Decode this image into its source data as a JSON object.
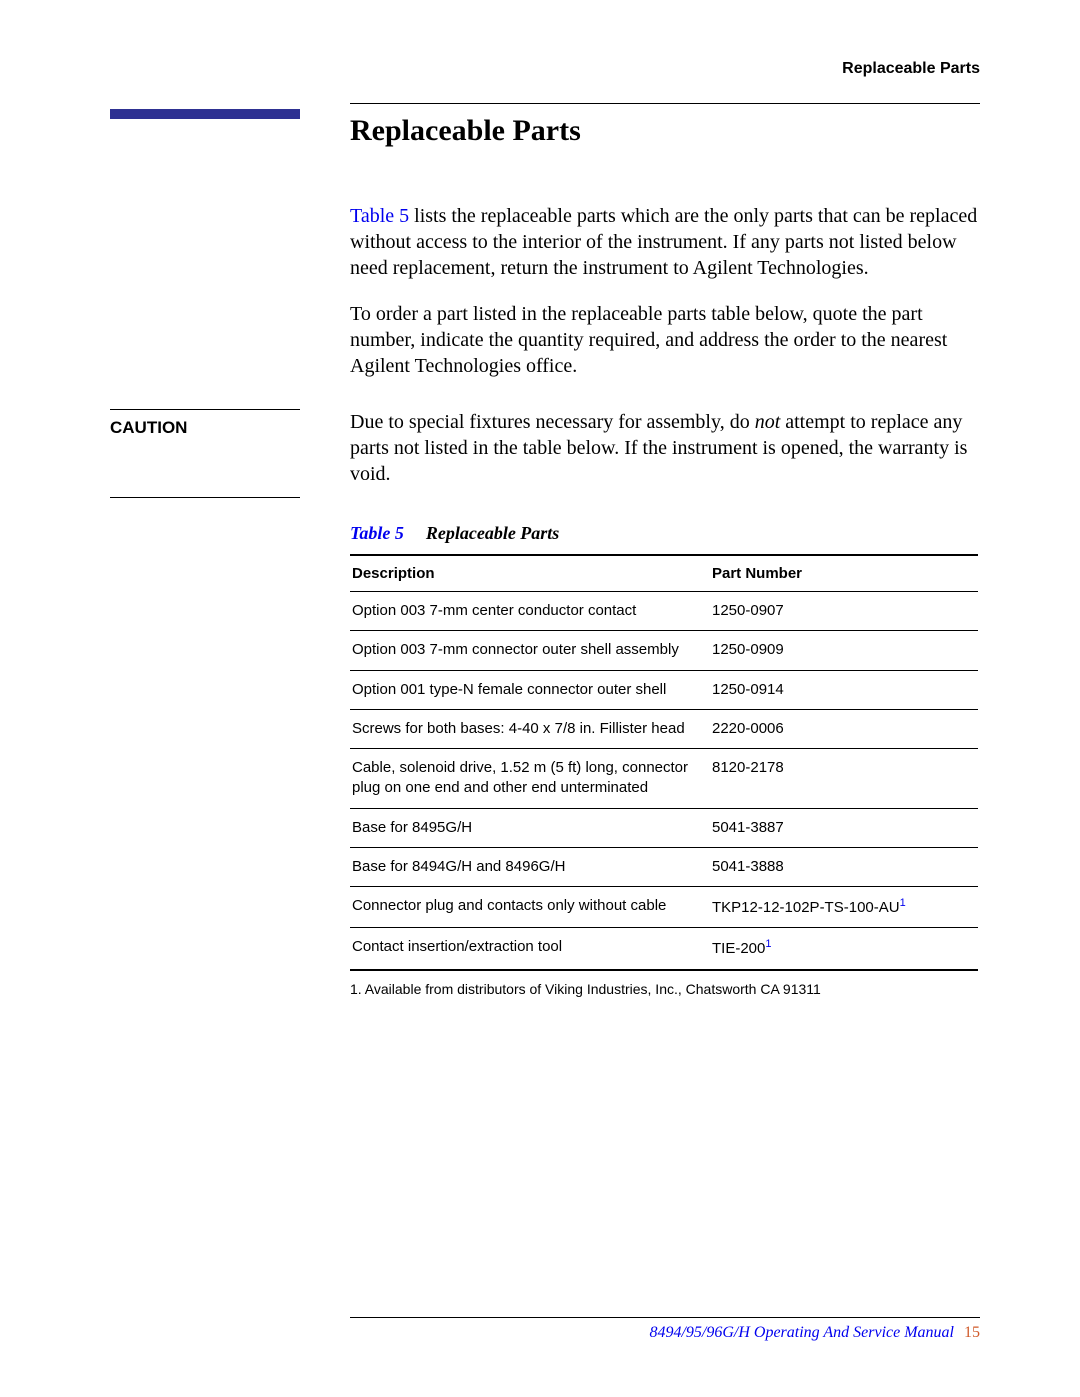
{
  "header": {
    "right": "Replaceable Parts"
  },
  "section": {
    "title": "Replaceable Parts"
  },
  "intro": {
    "link": "Table 5",
    "p1a": " lists the replaceable parts which are the only parts that can be replaced without access to the interior of the instrument. If any parts not listed below need replacement, return the instrument to Agilent Technologies.",
    "p2": "To order a part listed in the replaceable parts table below, quote the part number, indicate the quantity required, and address the order to the nearest Agilent Technologies office."
  },
  "caution": {
    "label": "CAUTION",
    "body_a": "Due to special fixtures necessary for assembly, do ",
    "body_not": "not",
    "body_b": " attempt to replace any parts not listed in the table below. If the instrument is opened, the warranty is void."
  },
  "table": {
    "caption_num": "Table 5",
    "caption_title": "Replaceable Parts",
    "head_desc": "Description",
    "head_part": "Part Number",
    "rows": [
      {
        "desc": "Option 003 7-mm center conductor contact",
        "part": "1250-0907",
        "sup": ""
      },
      {
        "desc": "Option 003 7-mm connector outer shell assembly",
        "part": "1250-0909",
        "sup": ""
      },
      {
        "desc": "Option 001 type-N female connector outer shell",
        "part": "1250-0914",
        "sup": ""
      },
      {
        "desc": "Screws for both bases: 4-40 x 7/8 in. Fillister head",
        "part": "2220-0006",
        "sup": ""
      },
      {
        "desc": "Cable, solenoid drive, 1.52 m (5 ft) long, connector plug on one end and other end unterminated",
        "part": "8120-2178",
        "sup": ""
      },
      {
        "desc": "Base for 8495G/H",
        "part": "5041-3887",
        "sup": ""
      },
      {
        "desc": "Base for 8494G/H and 8496G/H",
        "part": "5041-3888",
        "sup": ""
      },
      {
        "desc": "Connector plug and contacts only without cable",
        "part": "TKP12-12-102P-TS-100-AU",
        "sup": "1"
      },
      {
        "desc": "Contact insertion/extraction tool",
        "part": "TIE-200",
        "sup": "1"
      }
    ],
    "footnote": "1.  Available from distributors of Viking Industries, Inc., Chatsworth CA 91311"
  },
  "footer": {
    "manual": "8494/95/96G/H Operating And Service Manual",
    "page": "15"
  }
}
